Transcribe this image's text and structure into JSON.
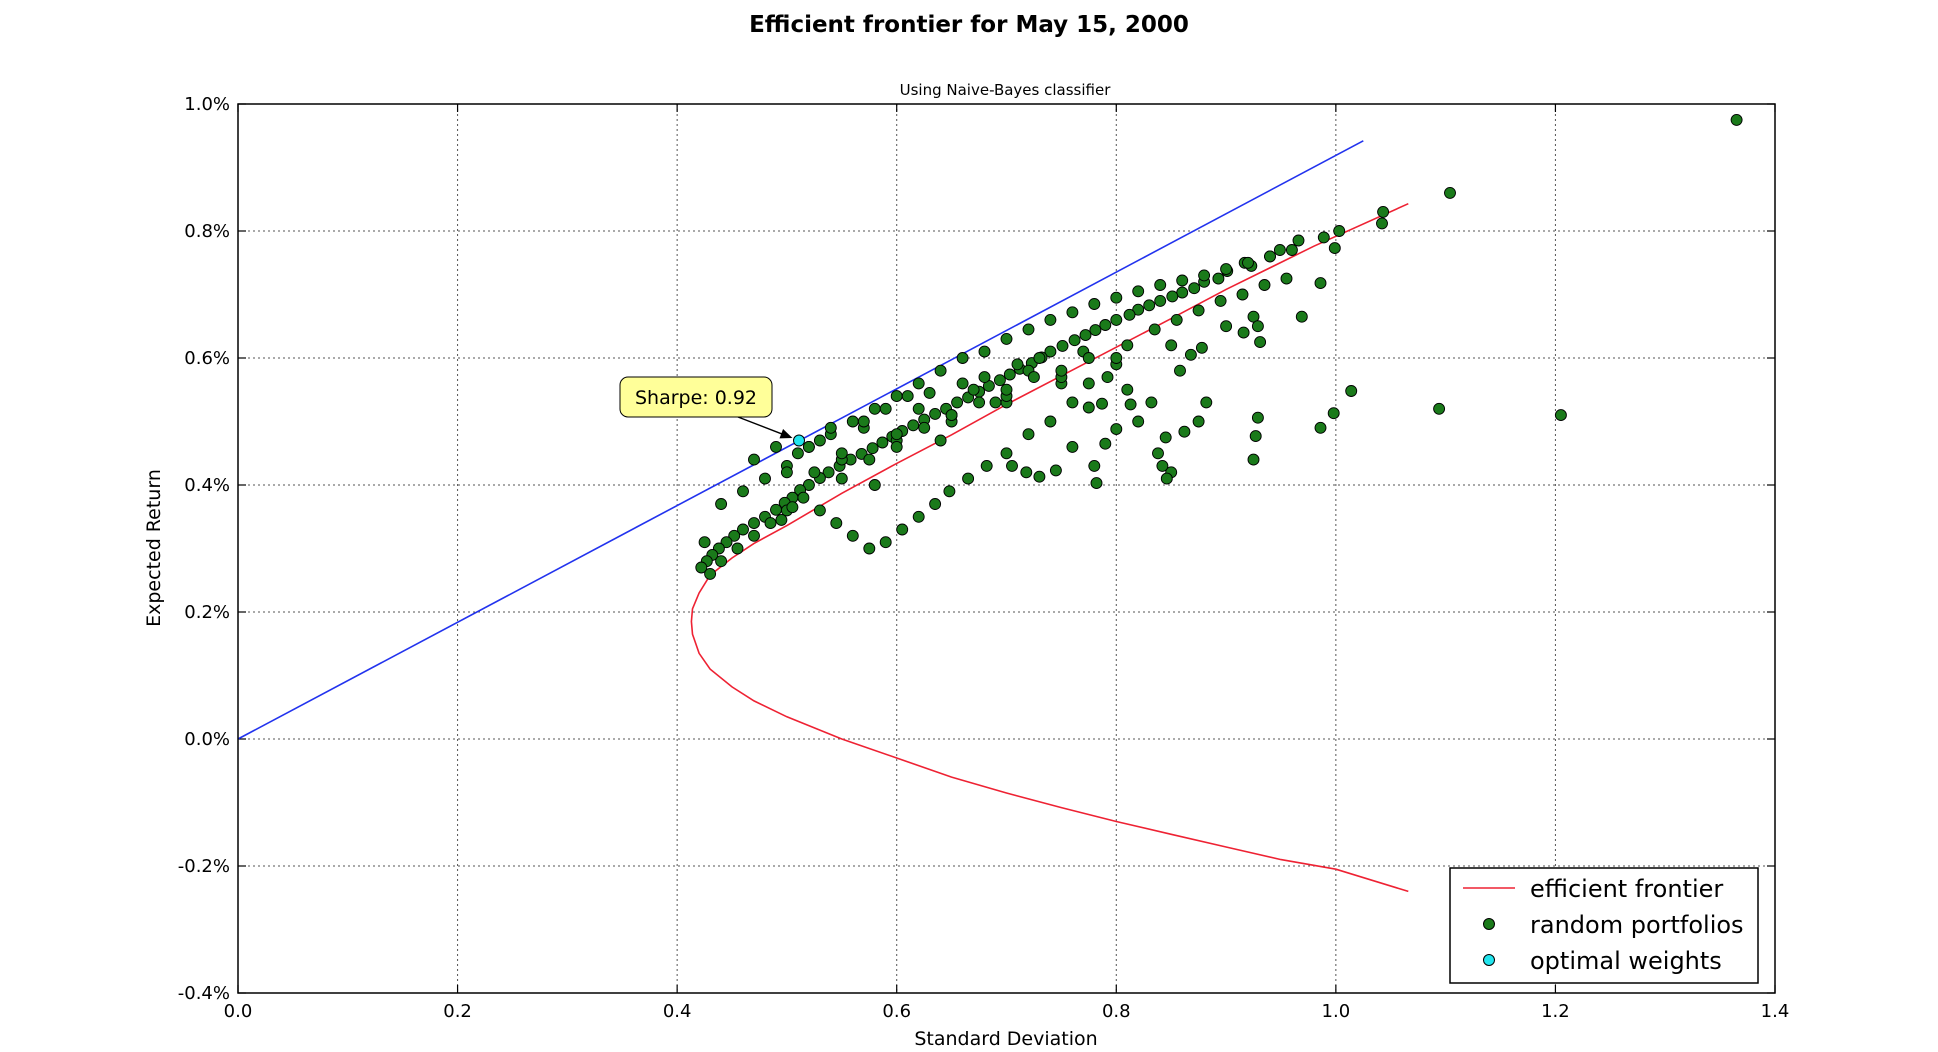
{
  "chart_data": {
    "type": "scatter",
    "title": "Efficient frontier for May 15, 2000",
    "subtitle": "Using Naive-Bayes classifier",
    "xlabel": "Standard Deviation",
    "ylabel": "Expected Return",
    "xlim": [
      0.0,
      1.4
    ],
    "ylim": [
      -0.4,
      1.0
    ],
    "xticks": [
      "0.0",
      "0.2",
      "0.4",
      "0.6",
      "0.8",
      "1.0",
      "1.2",
      "1.4"
    ],
    "yticks": [
      "-0.4%",
      "-0.2%",
      "0.0%",
      "0.2%",
      "0.4%",
      "0.6%",
      "0.8%",
      "1.0%"
    ],
    "grid": true,
    "legend_position": "bottom-right",
    "colors": {
      "frontier": "#ee2233",
      "cml": "#2233ee",
      "portfolios": "#1a7a1a",
      "optimal": "#22e5ee",
      "annotation_bg": "#ffff99"
    },
    "legend": {
      "frontier_label": "efficient frontier",
      "random_label": "random portfolios",
      "optimal_label": "optimal weights"
    },
    "annotation": {
      "text": "Sharpe: 0.92",
      "x": 0.511,
      "y": 0.47
    },
    "optimal_weights": {
      "x": 0.511,
      "y": 0.47
    },
    "capital_market_line": {
      "x": [
        0.0,
        1.025
      ],
      "y": [
        0.0,
        0.942
      ]
    },
    "efficient_frontier": {
      "x": [
        1.066,
        0.98,
        0.9,
        0.85,
        0.8,
        0.75,
        0.7,
        0.65,
        0.6,
        0.55,
        0.5,
        0.47,
        0.45,
        0.43,
        0.42,
        0.414,
        0.413,
        0.414,
        0.42,
        0.43,
        0.45,
        0.47,
        0.5,
        0.55,
        0.6,
        0.65,
        0.7,
        0.75,
        0.8,
        0.85,
        0.9,
        0.95,
        1.0,
        1.066
      ],
      "y": [
        0.843,
        0.776,
        0.708,
        0.662,
        0.617,
        0.572,
        0.527,
        0.479,
        0.434,
        0.387,
        0.336,
        0.308,
        0.285,
        0.258,
        0.23,
        0.205,
        0.185,
        0.165,
        0.135,
        0.11,
        0.082,
        0.06,
        0.035,
        0.0,
        -0.03,
        -0.06,
        -0.085,
        -0.108,
        -0.13,
        -0.15,
        -0.17,
        -0.19,
        -0.205,
        -0.24
      ]
    },
    "random_portfolios": {
      "x": [
        1.365,
        1.104,
        1.043,
        1.042,
        1.003,
        0.989,
        0.999,
        0.966,
        0.949,
        0.94,
        0.923,
        0.917,
        0.901,
        0.893,
        0.88,
        0.871,
        0.86,
        0.851,
        0.84,
        0.83,
        0.82,
        0.812,
        0.8,
        0.79,
        0.781,
        0.772,
        0.762,
        0.751,
        0.74,
        0.732,
        0.723,
        0.712,
        0.703,
        0.694,
        0.684,
        0.675,
        0.665,
        0.655,
        0.645,
        0.635,
        0.625,
        0.615,
        0.605,
        0.596,
        0.587,
        0.578,
        0.568,
        0.558,
        0.548,
        0.538,
        0.53,
        0.52,
        0.512,
        0.505,
        0.498,
        0.49,
        0.48,
        0.47,
        0.46,
        0.452,
        0.445,
        0.438,
        0.432,
        0.427,
        0.422,
        1.094,
        1.205,
        1.014,
        0.998,
        0.986,
        0.929,
        0.927,
        0.925,
        0.931,
        0.969,
        0.986,
        0.925,
        0.929,
        0.916,
        0.882,
        0.875,
        0.862,
        0.845,
        0.838,
        0.85,
        0.846,
        0.842,
        0.878,
        0.868,
        0.858,
        0.832,
        0.813,
        0.8,
        0.79,
        0.78,
        0.782,
        0.787,
        0.775,
        0.76,
        0.745,
        0.73,
        0.718,
        0.705,
        0.82,
        0.81,
        0.792,
        0.775,
        0.76,
        0.74,
        0.72,
        0.7,
        0.682,
        0.665,
        0.648,
        0.635,
        0.62,
        0.605,
        0.59,
        0.575,
        0.56,
        0.545,
        0.53,
        0.515,
        0.5,
        0.485,
        0.47,
        0.455,
        0.44,
        0.43,
        0.425,
        0.44,
        0.46,
        0.48,
        0.5,
        0.52,
        0.54,
        0.56,
        0.58,
        0.6,
        0.62,
        0.64,
        0.66,
        0.68,
        0.7,
        0.72,
        0.74,
        0.76,
        0.78,
        0.8,
        0.82,
        0.84,
        0.86,
        0.88,
        0.9,
        0.92,
        0.94,
        0.96,
        0.55,
        0.6,
        0.65,
        0.7,
        0.75,
        0.8,
        0.85,
        0.9,
        0.5,
        0.55,
        0.6,
        0.65,
        0.7,
        0.75,
        0.8,
        0.52,
        0.57,
        0.62,
        0.67,
        0.72,
        0.77,
        0.47,
        0.49,
        0.51,
        0.53,
        0.54,
        0.57,
        0.59,
        0.61,
        0.63,
        0.66,
        0.68,
        0.71,
        0.73,
        0.69,
        0.64,
        0.58,
        0.505,
        0.495,
        0.525,
        0.55,
        0.575,
        0.6,
        0.625,
        0.65,
        0.675,
        0.7,
        0.725,
        0.75,
        0.775,
        0.81,
        0.835,
        0.855,
        0.875,
        0.895,
        0.915,
        0.935,
        0.955
      ],
      "y": [
        0.975,
        0.86,
        0.83,
        0.812,
        0.8,
        0.79,
        0.773,
        0.785,
        0.77,
        0.76,
        0.745,
        0.75,
        0.737,
        0.725,
        0.72,
        0.71,
        0.703,
        0.697,
        0.69,
        0.683,
        0.676,
        0.668,
        0.66,
        0.652,
        0.644,
        0.636,
        0.628,
        0.619,
        0.61,
        0.601,
        0.592,
        0.583,
        0.574,
        0.565,
        0.556,
        0.547,
        0.538,
        0.53,
        0.52,
        0.512,
        0.503,
        0.494,
        0.485,
        0.476,
        0.467,
        0.458,
        0.449,
        0.44,
        0.43,
        0.42,
        0.411,
        0.4,
        0.392,
        0.38,
        0.372,
        0.361,
        0.35,
        0.34,
        0.33,
        0.32,
        0.31,
        0.3,
        0.29,
        0.28,
        0.27,
        0.52,
        0.51,
        0.548,
        0.513,
        0.49,
        0.506,
        0.477,
        0.44,
        0.625,
        0.665,
        0.718,
        0.665,
        0.65,
        0.64,
        0.53,
        0.5,
        0.484,
        0.475,
        0.45,
        0.42,
        0.41,
        0.43,
        0.616,
        0.605,
        0.58,
        0.53,
        0.527,
        0.488,
        0.465,
        0.43,
        0.403,
        0.528,
        0.522,
        0.46,
        0.423,
        0.413,
        0.42,
        0.43,
        0.5,
        0.55,
        0.57,
        0.56,
        0.53,
        0.5,
        0.48,
        0.45,
        0.43,
        0.41,
        0.39,
        0.37,
        0.35,
        0.33,
        0.31,
        0.3,
        0.32,
        0.34,
        0.36,
        0.38,
        0.36,
        0.34,
        0.32,
        0.3,
        0.28,
        0.26,
        0.31,
        0.37,
        0.39,
        0.41,
        0.43,
        0.46,
        0.48,
        0.5,
        0.52,
        0.54,
        0.56,
        0.58,
        0.6,
        0.61,
        0.63,
        0.645,
        0.66,
        0.672,
        0.685,
        0.695,
        0.705,
        0.715,
        0.722,
        0.73,
        0.74,
        0.75,
        0.76,
        0.77,
        0.44,
        0.47,
        0.5,
        0.53,
        0.56,
        0.59,
        0.62,
        0.65,
        0.42,
        0.45,
        0.48,
        0.51,
        0.54,
        0.57,
        0.6,
        0.46,
        0.49,
        0.52,
        0.55,
        0.58,
        0.61,
        0.44,
        0.46,
        0.45,
        0.47,
        0.49,
        0.5,
        0.52,
        0.54,
        0.545,
        0.56,
        0.57,
        0.59,
        0.6,
        0.53,
        0.47,
        0.4,
        0.365,
        0.345,
        0.42,
        0.41,
        0.44,
        0.46,
        0.49,
        0.51,
        0.53,
        0.55,
        0.57,
        0.58,
        0.6,
        0.62,
        0.645,
        0.66,
        0.675,
        0.69,
        0.7,
        0.715,
        0.725
      ]
    }
  }
}
